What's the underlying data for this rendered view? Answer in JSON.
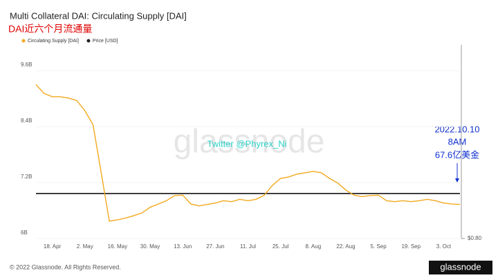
{
  "chart_data": {
    "type": "line",
    "title": "Multi Collateral DAI: Circulating Supply [DAI]",
    "subtitle": "DAI近六个月流通量",
    "watermark": "glassnode",
    "annotations": [
      "Twitter @Phyrex_Ni",
      "2022.10.10",
      "8AM",
      "67.6亿美金"
    ],
    "footer": "© 2022 Glassnode. All Rights Reserved.",
    "logo": "glassnode",
    "categories": [
      null,
      null,
      "18. Apr",
      null,
      null,
      null,
      "2. May",
      null,
      null,
      null,
      "16. May",
      null,
      null,
      null,
      "30. May",
      null,
      null,
      null,
      "13. Jun",
      null,
      null,
      null,
      "27. Jun",
      null,
      null,
      null,
      "11. Jul",
      null,
      null,
      null,
      "25. Jul",
      null,
      null,
      null,
      "8. Aug",
      null,
      null,
      null,
      "22. Aug",
      null,
      null,
      null,
      "5. Sep",
      null,
      null,
      null,
      "19. Sep",
      null,
      null,
      null,
      "3. Oct",
      null,
      null
    ],
    "series": [
      {
        "name": "Circulating Supply [DAI]",
        "color": "#f2a81d",
        "values": [
          9.3,
          9.11,
          9.04,
          9.04,
          9.01,
          8.96,
          8.74,
          8.44,
          7.41,
          6.37,
          6.4,
          6.44,
          6.49,
          6.55,
          6.67,
          6.74,
          6.81,
          6.92,
          6.93,
          6.74,
          6.7,
          6.73,
          6.76,
          6.81,
          6.79,
          6.84,
          6.81,
          6.84,
          6.93,
          7.14,
          7.29,
          7.32,
          7.38,
          7.41,
          7.44,
          7.41,
          7.29,
          7.19,
          7.04,
          6.93,
          6.9,
          6.92,
          6.93,
          6.81,
          6.79,
          6.81,
          6.79,
          6.81,
          6.84,
          6.81,
          6.76,
          6.74,
          6.73
        ]
      },
      {
        "name": "Price [USD]",
        "color": "#222222",
        "axis": "y2",
        "values": [
          1,
          1,
          1,
          1,
          1,
          1,
          1,
          1,
          1,
          1,
          1,
          1,
          1,
          1,
          1,
          1,
          1,
          1,
          1,
          1,
          1,
          1,
          1,
          1,
          1,
          1,
          1,
          1,
          1,
          1,
          1,
          1,
          1,
          1,
          1,
          1,
          1,
          1,
          1,
          1,
          1,
          1,
          1,
          1,
          1,
          1,
          1,
          1,
          1,
          1,
          1,
          1,
          1
        ]
      }
    ],
    "ylim": [
      6,
      10.15
    ],
    "yticks": [
      {
        "value": 6,
        "label": "6B"
      },
      {
        "value": 7.2,
        "label": "7.2B"
      },
      {
        "value": 8.4,
        "label": "8.4B"
      },
      {
        "value": 9.6,
        "label": "9.6B"
      }
    ],
    "y2lim": [
      0.8,
      1.66
    ],
    "y2ticks": [
      {
        "value": 0.8,
        "label": "$0.80"
      }
    ],
    "grid": true,
    "legend": "top-left"
  }
}
